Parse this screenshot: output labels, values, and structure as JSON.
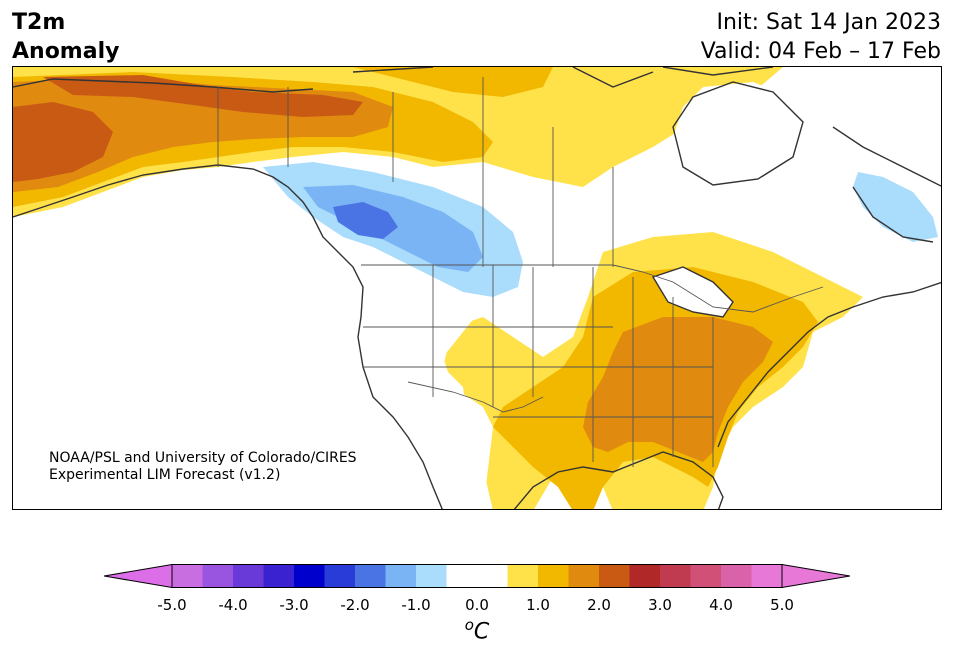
{
  "header": {
    "variable": "T2m",
    "field": "Anomaly",
    "init": "Init: Sat 14 Jan 2023",
    "valid": "Valid: 04 Feb – 17 Feb"
  },
  "credit": {
    "line1": "NOAA/PSL and University of Colorado/CIRES",
    "line2": "Experimental LIM Forecast (v1.2)"
  },
  "colorbar": {
    "min": -5.0,
    "max": 5.0,
    "step": 0.5,
    "tick_labels": [
      "-5.0",
      "-4.0",
      "-3.0",
      "-2.0",
      "-1.0",
      "0.0",
      "1.0",
      "2.0",
      "3.0",
      "4.0",
      "5.0"
    ],
    "unit_base": "o",
    "unit_letter": "C",
    "under_color": "#dc6ee8",
    "over_color": "#e878d8",
    "colors": [
      "#c86ee0",
      "#9a55e0",
      "#6a3ad8",
      "#3a22d0",
      "#0000cc",
      "#2a3cd8",
      "#4a74e4",
      "#7ab4f4",
      "#aadcfc",
      "#ffffff",
      "#ffffff",
      "#ffe24a",
      "#f2b800",
      "#e08a10",
      "#c85a14",
      "#b02828",
      "#c03a50",
      "#d05078",
      "#da62a8",
      "#e878d8"
    ]
  },
  "anomaly_palette": {
    "warm_1": "#ffe24a",
    "warm_2": "#f2b800",
    "warm_3": "#e08a10",
    "warm_4": "#c85a14",
    "cool_1": "#aadcfc",
    "cool_2": "#7ab4f4",
    "cool_3": "#4a74e4",
    "land_outline": "#333333",
    "border_outline": "#555555"
  }
}
